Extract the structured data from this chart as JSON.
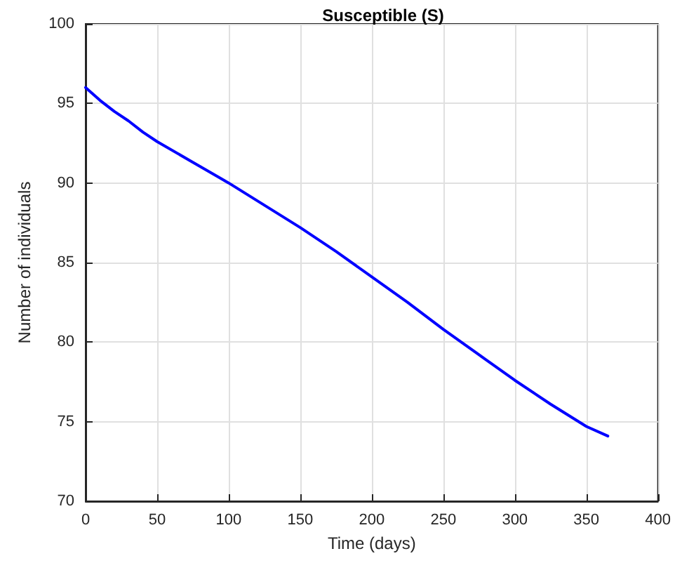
{
  "chart_data": {
    "type": "line",
    "title": "Susceptible (S)",
    "xlabel": "Time (days)",
    "ylabel": "Number of individuals",
    "x": [
      0,
      5,
      10,
      20,
      30,
      40,
      50,
      75,
      100,
      125,
      150,
      175,
      200,
      225,
      250,
      275,
      300,
      325,
      350,
      365
    ],
    "series": [
      {
        "color": "#0000ff",
        "values": [
          96.0,
          95.6,
          95.2,
          94.5,
          93.9,
          93.2,
          92.6,
          91.3,
          90.0,
          88.6,
          87.2,
          85.7,
          84.1,
          82.5,
          80.8,
          79.2,
          77.6,
          76.1,
          74.7,
          74.1
        ]
      }
    ],
    "xlim": [
      0,
      400
    ],
    "xticks": [
      0,
      50,
      100,
      150,
      200,
      250,
      300,
      350,
      400
    ],
    "ylim": [
      70,
      100
    ],
    "yticks": [
      70,
      75,
      80,
      85,
      90,
      95,
      100
    ],
    "grid": true,
    "marker": "none",
    "line_style": "solid"
  }
}
